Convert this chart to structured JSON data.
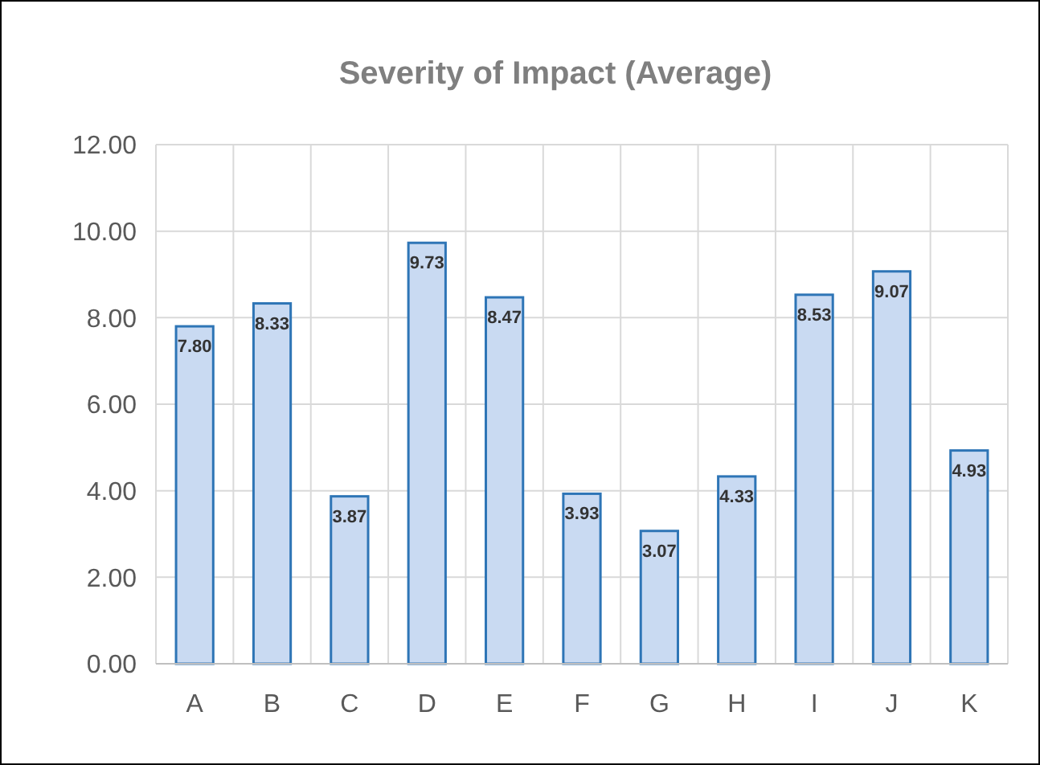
{
  "chart_data": {
    "type": "bar",
    "title": "Severity of Impact (Average)",
    "categories": [
      "A",
      "B",
      "C",
      "D",
      "E",
      "F",
      "G",
      "H",
      "I",
      "J",
      "K"
    ],
    "values": [
      7.8,
      8.33,
      3.87,
      9.73,
      8.47,
      3.93,
      3.07,
      4.33,
      8.53,
      9.07,
      4.93
    ],
    "value_labels": [
      "7.80",
      "8.33",
      "3.87",
      "9.73",
      "8.47",
      "3.93",
      "3.07",
      "4.33",
      "8.53",
      "9.07",
      "4.93"
    ],
    "color": "#c9daf2",
    "ylim": [
      0,
      12
    ],
    "yticks": [
      {
        "value": 0,
        "label": "0.00"
      },
      {
        "value": 2,
        "label": "2.00"
      },
      {
        "value": 4,
        "label": "4.00"
      },
      {
        "value": 6,
        "label": "6.00"
      },
      {
        "value": 8,
        "label": "8.00"
      },
      {
        "value": 10,
        "label": "10.00"
      },
      {
        "value": 12,
        "label": "12.00"
      }
    ],
    "grid": true
  }
}
